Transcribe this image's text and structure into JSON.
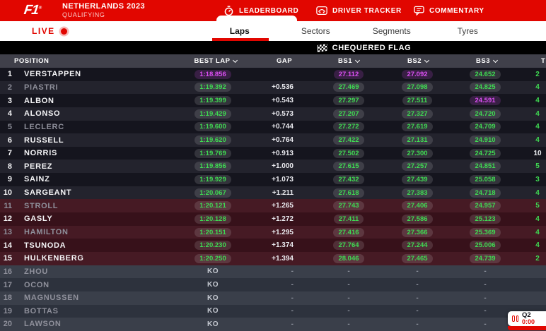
{
  "header": {
    "logo": "F1",
    "event_title": "NETHERLANDS 2023",
    "session": "QUALIFYING",
    "nav": [
      {
        "label": "LEADERBOARD",
        "icon": "stopwatch-icon",
        "active": true
      },
      {
        "label": "DRIVER TRACKER",
        "icon": "car-icon",
        "active": false
      },
      {
        "label": "COMMENTARY",
        "icon": "speech-bubble-icon",
        "active": false
      }
    ]
  },
  "live": {
    "label": "LIVE"
  },
  "subtabs": [
    {
      "label": "Laps",
      "active": true
    },
    {
      "label": "Sectors",
      "active": false
    },
    {
      "label": "Segments",
      "active": false
    },
    {
      "label": "Tyres",
      "active": false
    }
  ],
  "status_banner": {
    "label": "CHEQUERED FLAG",
    "icon": "chequered-flag-icon"
  },
  "session_widget": {
    "segment": "Q2",
    "clock": "0:00",
    "icon": "pause-icon"
  },
  "colors": {
    "accent_red": "#e10600",
    "timing_green": "#3fda52",
    "timing_purple": "#da4ff2"
  },
  "table": {
    "headers": {
      "position": "POSITION",
      "best_lap": "BEST LAP",
      "gap": "GAP",
      "bs1": "BS1",
      "bs2": "BS2",
      "bs3": "BS3",
      "tyre": "T"
    },
    "rows": [
      {
        "pos": 1,
        "driver": "VERSTAPPEN",
        "team_color": "#3671C6",
        "dim": false,
        "zone": "normal",
        "best_lap": "1:18.856",
        "best_lap_color": "purple",
        "gap": "",
        "bs1": "27.112",
        "bs1_color": "purple",
        "bs2": "27.092",
        "bs2_color": "purple",
        "bs3": "24.652",
        "bs3_color": "green",
        "tyre": "2",
        "tyre_color": "green"
      },
      {
        "pos": 2,
        "driver": "PIASTRI",
        "team_color": "#F58020",
        "dim": true,
        "zone": "normal",
        "best_lap": "1:19.392",
        "best_lap_color": "green",
        "gap": "+0.536",
        "bs1": "27.469",
        "bs1_color": "green",
        "bs2": "27.098",
        "bs2_color": "green",
        "bs3": "24.825",
        "bs3_color": "green",
        "tyre": "4",
        "tyre_color": "green"
      },
      {
        "pos": 3,
        "driver": "ALBON",
        "team_color": "#37BEDD",
        "dim": false,
        "zone": "normal",
        "best_lap": "1:19.399",
        "best_lap_color": "green",
        "gap": "+0.543",
        "bs1": "27.297",
        "bs1_color": "green",
        "bs2": "27.511",
        "bs2_color": "green",
        "bs3": "24.591",
        "bs3_color": "purple",
        "tyre": "4",
        "tyre_color": "green"
      },
      {
        "pos": 4,
        "driver": "ALONSO",
        "team_color": "#358C75",
        "dim": false,
        "zone": "normal",
        "best_lap": "1:19.429",
        "best_lap_color": "green",
        "gap": "+0.573",
        "bs1": "27.207",
        "bs1_color": "green",
        "bs2": "27.327",
        "bs2_color": "green",
        "bs3": "24.720",
        "bs3_color": "green",
        "tyre": "4",
        "tyre_color": "green"
      },
      {
        "pos": 5,
        "driver": "LECLERC",
        "team_color": "#F91536",
        "dim": true,
        "zone": "normal",
        "best_lap": "1:19.600",
        "best_lap_color": "green",
        "gap": "+0.744",
        "bs1": "27.272",
        "bs1_color": "green",
        "bs2": "27.619",
        "bs2_color": "green",
        "bs3": "24.709",
        "bs3_color": "green",
        "tyre": "4",
        "tyre_color": "green"
      },
      {
        "pos": 6,
        "driver": "RUSSELL",
        "team_color": "#6CD3BF",
        "dim": false,
        "zone": "normal",
        "best_lap": "1:19.620",
        "best_lap_color": "green",
        "gap": "+0.764",
        "bs1": "27.422",
        "bs1_color": "green",
        "bs2": "27.131",
        "bs2_color": "green",
        "bs3": "24.910",
        "bs3_color": "green",
        "tyre": "4",
        "tyre_color": "green"
      },
      {
        "pos": 7,
        "driver": "NORRIS",
        "team_color": "#F58020",
        "dim": false,
        "zone": "normal",
        "best_lap": "1:19.769",
        "best_lap_color": "green",
        "gap": "+0.913",
        "bs1": "27.502",
        "bs1_color": "green",
        "bs2": "27.300",
        "bs2_color": "green",
        "bs3": "24.725",
        "bs3_color": "green",
        "tyre": "10",
        "tyre_color": "white"
      },
      {
        "pos": 8,
        "driver": "PEREZ",
        "team_color": "#3671C6",
        "dim": false,
        "zone": "normal",
        "best_lap": "1:19.856",
        "best_lap_color": "green",
        "gap": "+1.000",
        "bs1": "27.615",
        "bs1_color": "green",
        "bs2": "27.257",
        "bs2_color": "green",
        "bs3": "24.851",
        "bs3_color": "green",
        "tyre": "5",
        "tyre_color": "green"
      },
      {
        "pos": 9,
        "driver": "SAINZ",
        "team_color": "#F91536",
        "dim": false,
        "zone": "normal",
        "best_lap": "1:19.929",
        "best_lap_color": "green",
        "gap": "+1.073",
        "bs1": "27.432",
        "bs1_color": "green",
        "bs2": "27.439",
        "bs2_color": "green",
        "bs3": "25.058",
        "bs3_color": "green",
        "tyre": "3",
        "tyre_color": "green"
      },
      {
        "pos": 10,
        "driver": "SARGEANT",
        "team_color": "#37BEDD",
        "dim": false,
        "zone": "normal",
        "best_lap": "1:20.067",
        "best_lap_color": "green",
        "gap": "+1.211",
        "bs1": "27.618",
        "bs1_color": "green",
        "bs2": "27.383",
        "bs2_color": "green",
        "bs3": "24.718",
        "bs3_color": "green",
        "tyre": "4",
        "tyre_color": "green"
      },
      {
        "pos": 11,
        "driver": "STROLL",
        "team_color": "#358C75",
        "dim": true,
        "zone": "drop",
        "best_lap": "1:20.121",
        "best_lap_color": "green",
        "gap": "+1.265",
        "bs1": "27.743",
        "bs1_color": "green",
        "bs2": "27.406",
        "bs2_color": "green",
        "bs3": "24.957",
        "bs3_color": "green",
        "tyre": "5",
        "tyre_color": "green"
      },
      {
        "pos": 12,
        "driver": "GASLY",
        "team_color": "#2293D1",
        "dim": false,
        "zone": "drop",
        "best_lap": "1:20.128",
        "best_lap_color": "green",
        "gap": "+1.272",
        "bs1": "27.411",
        "bs1_color": "green",
        "bs2": "27.586",
        "bs2_color": "green",
        "bs3": "25.123",
        "bs3_color": "green",
        "tyre": "4",
        "tyre_color": "green"
      },
      {
        "pos": 13,
        "driver": "HAMILTON",
        "team_color": "#6CD3BF",
        "dim": true,
        "zone": "drop",
        "best_lap": "1:20.151",
        "best_lap_color": "green",
        "gap": "+1.295",
        "bs1": "27.416",
        "bs1_color": "green",
        "bs2": "27.366",
        "bs2_color": "green",
        "bs3": "25.369",
        "bs3_color": "green",
        "tyre": "4",
        "tyre_color": "green"
      },
      {
        "pos": 14,
        "driver": "TSUNODA",
        "team_color": "#5E8FAA",
        "dim": false,
        "zone": "drop",
        "best_lap": "1:20.230",
        "best_lap_color": "green",
        "gap": "+1.374",
        "bs1": "27.764",
        "bs1_color": "green",
        "bs2": "27.244",
        "bs2_color": "green",
        "bs3": "25.006",
        "bs3_color": "green",
        "tyre": "4",
        "tyre_color": "green"
      },
      {
        "pos": 15,
        "driver": "HULKENBERG",
        "team_color": "#B6BABD",
        "dim": false,
        "zone": "drop",
        "best_lap": "1:20.250",
        "best_lap_color": "green",
        "gap": "+1.394",
        "bs1": "28.046",
        "bs1_color": "green",
        "bs2": "27.465",
        "bs2_color": "green",
        "bs3": "24.739",
        "bs3_color": "green",
        "tyre": "2",
        "tyre_color": "green"
      },
      {
        "pos": 16,
        "driver": "ZHOU",
        "team_color": "#C92D4B",
        "dim": true,
        "zone": "ko",
        "best_lap": "KO",
        "best_lap_color": "",
        "gap": "-",
        "bs1": "-",
        "bs1_color": "",
        "bs2": "-",
        "bs2_color": "",
        "bs3": "-",
        "bs3_color": "",
        "tyre": "",
        "tyre_color": ""
      },
      {
        "pos": 17,
        "driver": "OCON",
        "team_color": "#2293D1",
        "dim": true,
        "zone": "ko",
        "best_lap": "KO",
        "best_lap_color": "",
        "gap": "-",
        "bs1": "-",
        "bs1_color": "",
        "bs2": "-",
        "bs2_color": "",
        "bs3": "-",
        "bs3_color": "",
        "tyre": "",
        "tyre_color": ""
      },
      {
        "pos": 18,
        "driver": "MAGNUSSEN",
        "team_color": "#B6BABD",
        "dim": true,
        "zone": "ko",
        "best_lap": "KO",
        "best_lap_color": "",
        "gap": "-",
        "bs1": "-",
        "bs1_color": "",
        "bs2": "-",
        "bs2_color": "",
        "bs3": "-",
        "bs3_color": "",
        "tyre": "",
        "tyre_color": ""
      },
      {
        "pos": 19,
        "driver": "BOTTAS",
        "team_color": "#C92D4B",
        "dim": true,
        "zone": "ko",
        "best_lap": "KO",
        "best_lap_color": "",
        "gap": "-",
        "bs1": "-",
        "bs1_color": "",
        "bs2": "-",
        "bs2_color": "",
        "bs3": "-",
        "bs3_color": "",
        "tyre": "",
        "tyre_color": ""
      },
      {
        "pos": 20,
        "driver": "LAWSON",
        "team_color": "#5E8FAA",
        "dim": true,
        "zone": "ko",
        "best_lap": "KO",
        "best_lap_color": "",
        "gap": "-",
        "bs1": "-",
        "bs1_color": "",
        "bs2": "-",
        "bs2_color": "",
        "bs3": "-",
        "bs3_color": "",
        "tyre": "",
        "tyre_color": ""
      }
    ]
  }
}
